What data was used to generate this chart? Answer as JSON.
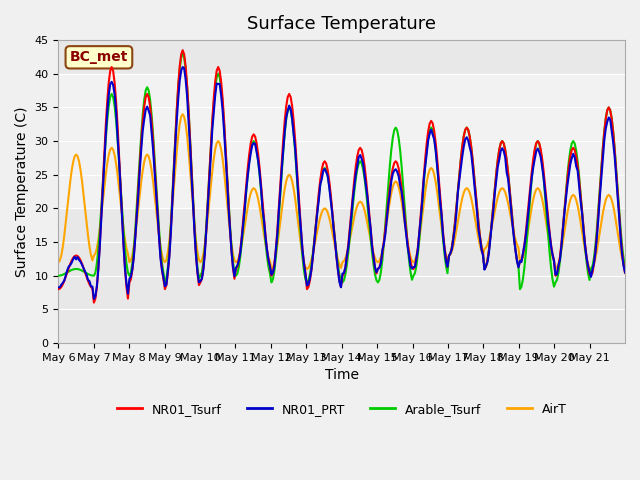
{
  "title": "Surface Temperature",
  "xlabel": "Time",
  "ylabel": "Surface Temperature (C)",
  "ylim": [
    0,
    45
  ],
  "yticks": [
    0,
    5,
    10,
    15,
    20,
    25,
    30,
    35,
    40,
    45
  ],
  "annotation": "BC_met",
  "legend_labels": [
    "NR01_Tsurf",
    "NR01_PRT",
    "Arable_Tsurf",
    "AirT"
  ],
  "legend_colors": [
    "#ff0000",
    "#0000cc",
    "#00cc00",
    "#ffa500"
  ],
  "line_width": 1.5,
  "x_dates": [
    "May 6",
    "May 7",
    "May 8",
    "May 9",
    "May 10",
    "May 11",
    "May 12",
    "May 13",
    "May 14",
    "May 15",
    "May 16",
    "May 17",
    "May 18",
    "May 19",
    "May 20",
    "May 21"
  ],
  "title_fontsize": 13,
  "axis_label_fontsize": 10,
  "tick_fontsize": 8,
  "shaded_band": [
    20,
    40
  ],
  "daily_maxes_NR": [
    13,
    41,
    37,
    43.5,
    41,
    31,
    37,
    27,
    29,
    27,
    33,
    32,
    30,
    30,
    29,
    35
  ],
  "daily_mins_NR": [
    8,
    6,
    9,
    8,
    9,
    11,
    10,
    8,
    10,
    11,
    11,
    13,
    11,
    12,
    10,
    10
  ],
  "daily_maxes_arable": [
    11,
    37,
    38,
    43,
    40,
    30,
    35,
    26,
    27,
    32,
    32,
    32,
    30,
    30,
    30,
    35
  ],
  "daily_mins_arable": [
    10,
    10,
    10,
    9,
    10,
    10,
    9,
    9,
    9,
    9,
    10,
    13,
    11,
    8,
    9,
    11
  ],
  "daily_maxes_air": [
    28,
    29,
    28,
    34,
    30,
    23,
    25,
    20,
    21,
    24,
    26,
    23,
    23,
    23,
    22,
    22
  ],
  "daily_mins_air": [
    12,
    13,
    12,
    12,
    12,
    12,
    11,
    11,
    12,
    12,
    12,
    13,
    14,
    12,
    11,
    11
  ],
  "fig_facecolor": "#f0f0f0",
  "ax_facecolor": "#e8e8e8"
}
